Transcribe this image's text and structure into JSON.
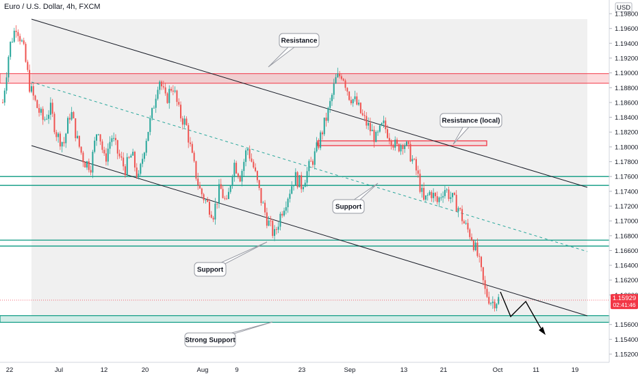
{
  "title": "Euro / U.S. Dollar, 4h, FXCM",
  "currency": "USD",
  "price_badge": {
    "price": "1.15929",
    "countdown": "02:41:46",
    "color": "#f23645"
  },
  "chart_data": {
    "type": "candlestick",
    "title": "Euro / U.S. Dollar, 4h, FXCM",
    "xlabel": "",
    "ylabel": "",
    "ylim": [
      1.151,
      1.199
    ],
    "y_ticks": [
      "1.19800",
      "1.19600",
      "1.19400",
      "1.19200",
      "1.19000",
      "1.18800",
      "1.18600",
      "1.18400",
      "1.18200",
      "1.18000",
      "1.17800",
      "1.17600",
      "1.17400",
      "1.17200",
      "1.17000",
      "1.16800",
      "1.16600",
      "1.16400",
      "1.16200",
      "1.16000",
      "1.15600",
      "1.15400",
      "1.15200"
    ],
    "x_ticks": [
      "22",
      "Jul",
      "12",
      "20",
      "Aug",
      "9",
      "23",
      "Sep",
      "13",
      "21",
      "Oct",
      "11",
      "19"
    ],
    "colors": {
      "up": "#26a69a",
      "down": "#ef5350"
    },
    "price_path": [
      1.186,
      1.1935,
      1.1965,
      1.1935,
      1.188,
      1.1855,
      1.1835,
      1.1852,
      1.1815,
      1.1805,
      1.185,
      1.1808,
      1.178,
      1.1775,
      1.183,
      1.178,
      1.1815,
      1.179,
      1.177,
      1.179,
      1.1755,
      1.1808,
      1.1845,
      1.1895,
      1.1862,
      1.1885,
      1.1845,
      1.183,
      1.178,
      1.1742,
      1.1725,
      1.171,
      1.1745,
      1.172,
      1.178,
      1.176,
      1.18,
      1.177,
      1.173,
      1.17,
      1.168,
      1.1712,
      1.1735,
      1.176,
      1.1748,
      1.177,
      1.179,
      1.182,
      1.185,
      1.189,
      1.19,
      1.187,
      1.186,
      1.184,
      1.1825,
      1.181,
      1.183,
      1.1815,
      1.1798,
      1.1808,
      1.179,
      1.1765,
      1.1725,
      1.174,
      1.1725,
      1.1745,
      1.1732,
      1.172,
      1.1695,
      1.168,
      1.165,
      1.1605,
      1.159,
      1.1594
    ],
    "series": [
      {
        "name": "",
        "type": "trend_channel",
        "upper": [
          [
            1.1972,
            1.1743
          ]
        ],
        "lower": [
          [
            1.1804,
            1.1569
          ]
        ],
        "midline": [
          1.188,
          1.1656
        ]
      }
    ],
    "horizontal_zones": [
      {
        "kind": "resistance",
        "from": 1.1886,
        "to": 1.1899,
        "color": "#f23645"
      },
      {
        "kind": "resistance_local",
        "from": 1.1802,
        "to": 1.1808,
        "color": "#f23645"
      },
      {
        "kind": "support",
        "lines": [
          1.176,
          1.1748
        ],
        "color": "#089981"
      },
      {
        "kind": "support",
        "lines": [
          1.1674,
          1.1666
        ],
        "color": "#089981"
      },
      {
        "kind": "strong_support",
        "from": 1.1563,
        "to": 1.1572,
        "color": "#089981"
      }
    ],
    "annotations": [
      "Resistance",
      "Resistance (local)",
      "Support",
      "Support",
      "Strong Support"
    ],
    "projection": [
      1.1593,
      1.1608,
      1.158,
      1.16,
      1.1572,
      1.1552
    ]
  }
}
